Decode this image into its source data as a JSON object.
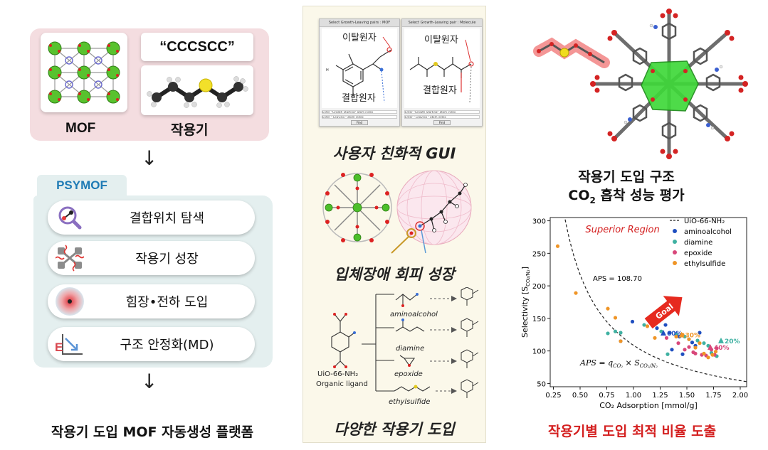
{
  "left": {
    "smiles": "“CCCSCC”",
    "mof_label": "MOF",
    "fg_label": "작용기",
    "arrow": "↓",
    "psymof_tab": "PSYMOF",
    "steps": [
      {
        "label": "결합위치 탐색",
        "icon": "magnifier-icon"
      },
      {
        "label": "작용기 성장",
        "icon": "growth-icon"
      },
      {
        "label": "힘장•전하 도입",
        "icon": "forcefield-icon"
      },
      {
        "label": "구조 안정화(MD)",
        "icon": "energy-plot-icon"
      }
    ],
    "bottom_caption": "작용기 도입 MOF 자동생성 플랫폼"
  },
  "middle": {
    "gui_windows": [
      {
        "title": "Select Growth-Leaving pairs : MOF",
        "top_label": "이탈원자",
        "bottom_label": "결합원자"
      },
      {
        "title": "Select Growth-Leaving pair : Molecule",
        "top_label": "이탈원자",
        "bottom_label": "결합원자"
      }
    ],
    "gui_field_1": "Enter \"Growth Starting\" atom index",
    "gui_field_2": "Enter \"  Leaving  \" atom index",
    "gui_button": "Find",
    "caption_gui": "사용자 친화적 GUI",
    "caption_steric": "입체장애 회피 성장",
    "caption_fg": "다양한 작용기 도입",
    "ligand_name": "UiO-66-NH₂",
    "ligand_desc": "Organic ligand",
    "groups": [
      "aminoalcohol",
      "diamine",
      "epoxide",
      "ethylsulfide"
    ]
  },
  "right": {
    "title_line1": "작용기 도입 구조",
    "title_line2_pre": "CO",
    "title_line2_sub": "2",
    "title_line2_post": " 흡착 성능 평가",
    "bottom_caption": "작용기별 도입 최적 비율 도출"
  },
  "chart_data": {
    "type": "scatter",
    "xlabel": "CO₂ Adsorption [mmol/g]",
    "ylabel": "Selectivity [S",
    "ylabel_sub": "CO₂/N₂",
    "xlim": [
      0.22,
      2.06
    ],
    "ylim": [
      45,
      305
    ],
    "xticks": [
      0.25,
      0.5,
      0.75,
      1.0,
      1.25,
      1.5,
      1.75,
      2.0
    ],
    "xtick_labels": [
      "0.25",
      "0.50",
      "0.75",
      "1.00",
      "1.25",
      "1.50",
      "1.75",
      "2.00"
    ],
    "yticks": [
      50,
      100,
      150,
      200,
      250,
      300
    ],
    "ytick_labels": [
      "50",
      "100",
      "150",
      "200",
      "250",
      "300"
    ],
    "grid": false,
    "legend_position": "top-right",
    "annotation_region": "Superior Region",
    "annotation_aps_value": "APS = 108.70",
    "annotation_formula": "APS = q",
    "annotation_goal": "Goal",
    "aps_constant": 108.7,
    "series": [
      {
        "name": "UiO-66-NH₂",
        "style": "dashed-curve",
        "color": "#222222"
      },
      {
        "name": "aminoalcohol",
        "color": "#1f4fc0",
        "points": [
          [
            0.88,
            115
          ],
          [
            0.99,
            145
          ],
          [
            1.22,
            135
          ],
          [
            1.3,
            140
          ],
          [
            1.34,
            128
          ],
          [
            1.4,
            126
          ],
          [
            1.43,
            122
          ],
          [
            1.52,
            118
          ],
          [
            1.58,
            108
          ],
          [
            1.62,
            128
          ],
          [
            1.55,
            113
          ],
          [
            1.46,
            95
          ],
          [
            1.36,
            102
          ]
        ]
      },
      {
        "name": "diamine",
        "color": "#3fb1a2",
        "points": [
          [
            0.76,
            127
          ],
          [
            0.83,
            130
          ],
          [
            0.88,
            128
          ],
          [
            1.1,
            140
          ],
          [
            1.26,
            130
          ],
          [
            1.32,
            95
          ],
          [
            1.4,
            125
          ],
          [
            1.48,
            122
          ],
          [
            1.6,
            116
          ],
          [
            1.66,
            112
          ],
          [
            1.7,
            108
          ],
          [
            1.73,
            97
          ],
          [
            1.78,
            92
          ],
          [
            1.82,
            115
          ]
        ]
      },
      {
        "name": "epoxide",
        "color": "#d8477a",
        "points": [
          [
            1.31,
            120
          ],
          [
            1.42,
            112
          ],
          [
            1.48,
            102
          ],
          [
            1.52,
            106
          ],
          [
            1.56,
            98
          ],
          [
            1.58,
            96
          ],
          [
            1.64,
            94
          ],
          [
            1.68,
            93
          ],
          [
            1.73,
            102
          ],
          [
            1.76,
            94
          ],
          [
            1.78,
            104
          ]
        ]
      },
      {
        "name": "ethylsulfide",
        "color": "#ef9527",
        "points": [
          [
            0.29,
            261
          ],
          [
            0.46,
            189
          ],
          [
            0.76,
            165
          ],
          [
            0.83,
            151
          ],
          [
            0.88,
            115
          ],
          [
            1.13,
            138
          ],
          [
            1.2,
            120
          ],
          [
            1.4,
            122
          ],
          [
            1.46,
            125
          ],
          [
            1.52,
            118
          ],
          [
            1.58,
            105
          ],
          [
            1.62,
            112
          ],
          [
            1.66,
            96
          ],
          [
            1.7,
            90
          ],
          [
            1.74,
            94
          ],
          [
            1.77,
            99
          ]
        ]
      }
    ],
    "labeled_points": [
      {
        "label": "60%",
        "x": 1.28,
        "y": 127,
        "color": "#1f4fc0"
      },
      {
        "label": "30%",
        "x": 1.45,
        "y": 124,
        "color": "#ef9527"
      },
      {
        "label": "20%",
        "x": 1.82,
        "y": 115,
        "color": "#3fb1a2"
      },
      {
        "label": "40%",
        "x": 1.72,
        "y": 105,
        "color": "#d8477a"
      }
    ]
  }
}
